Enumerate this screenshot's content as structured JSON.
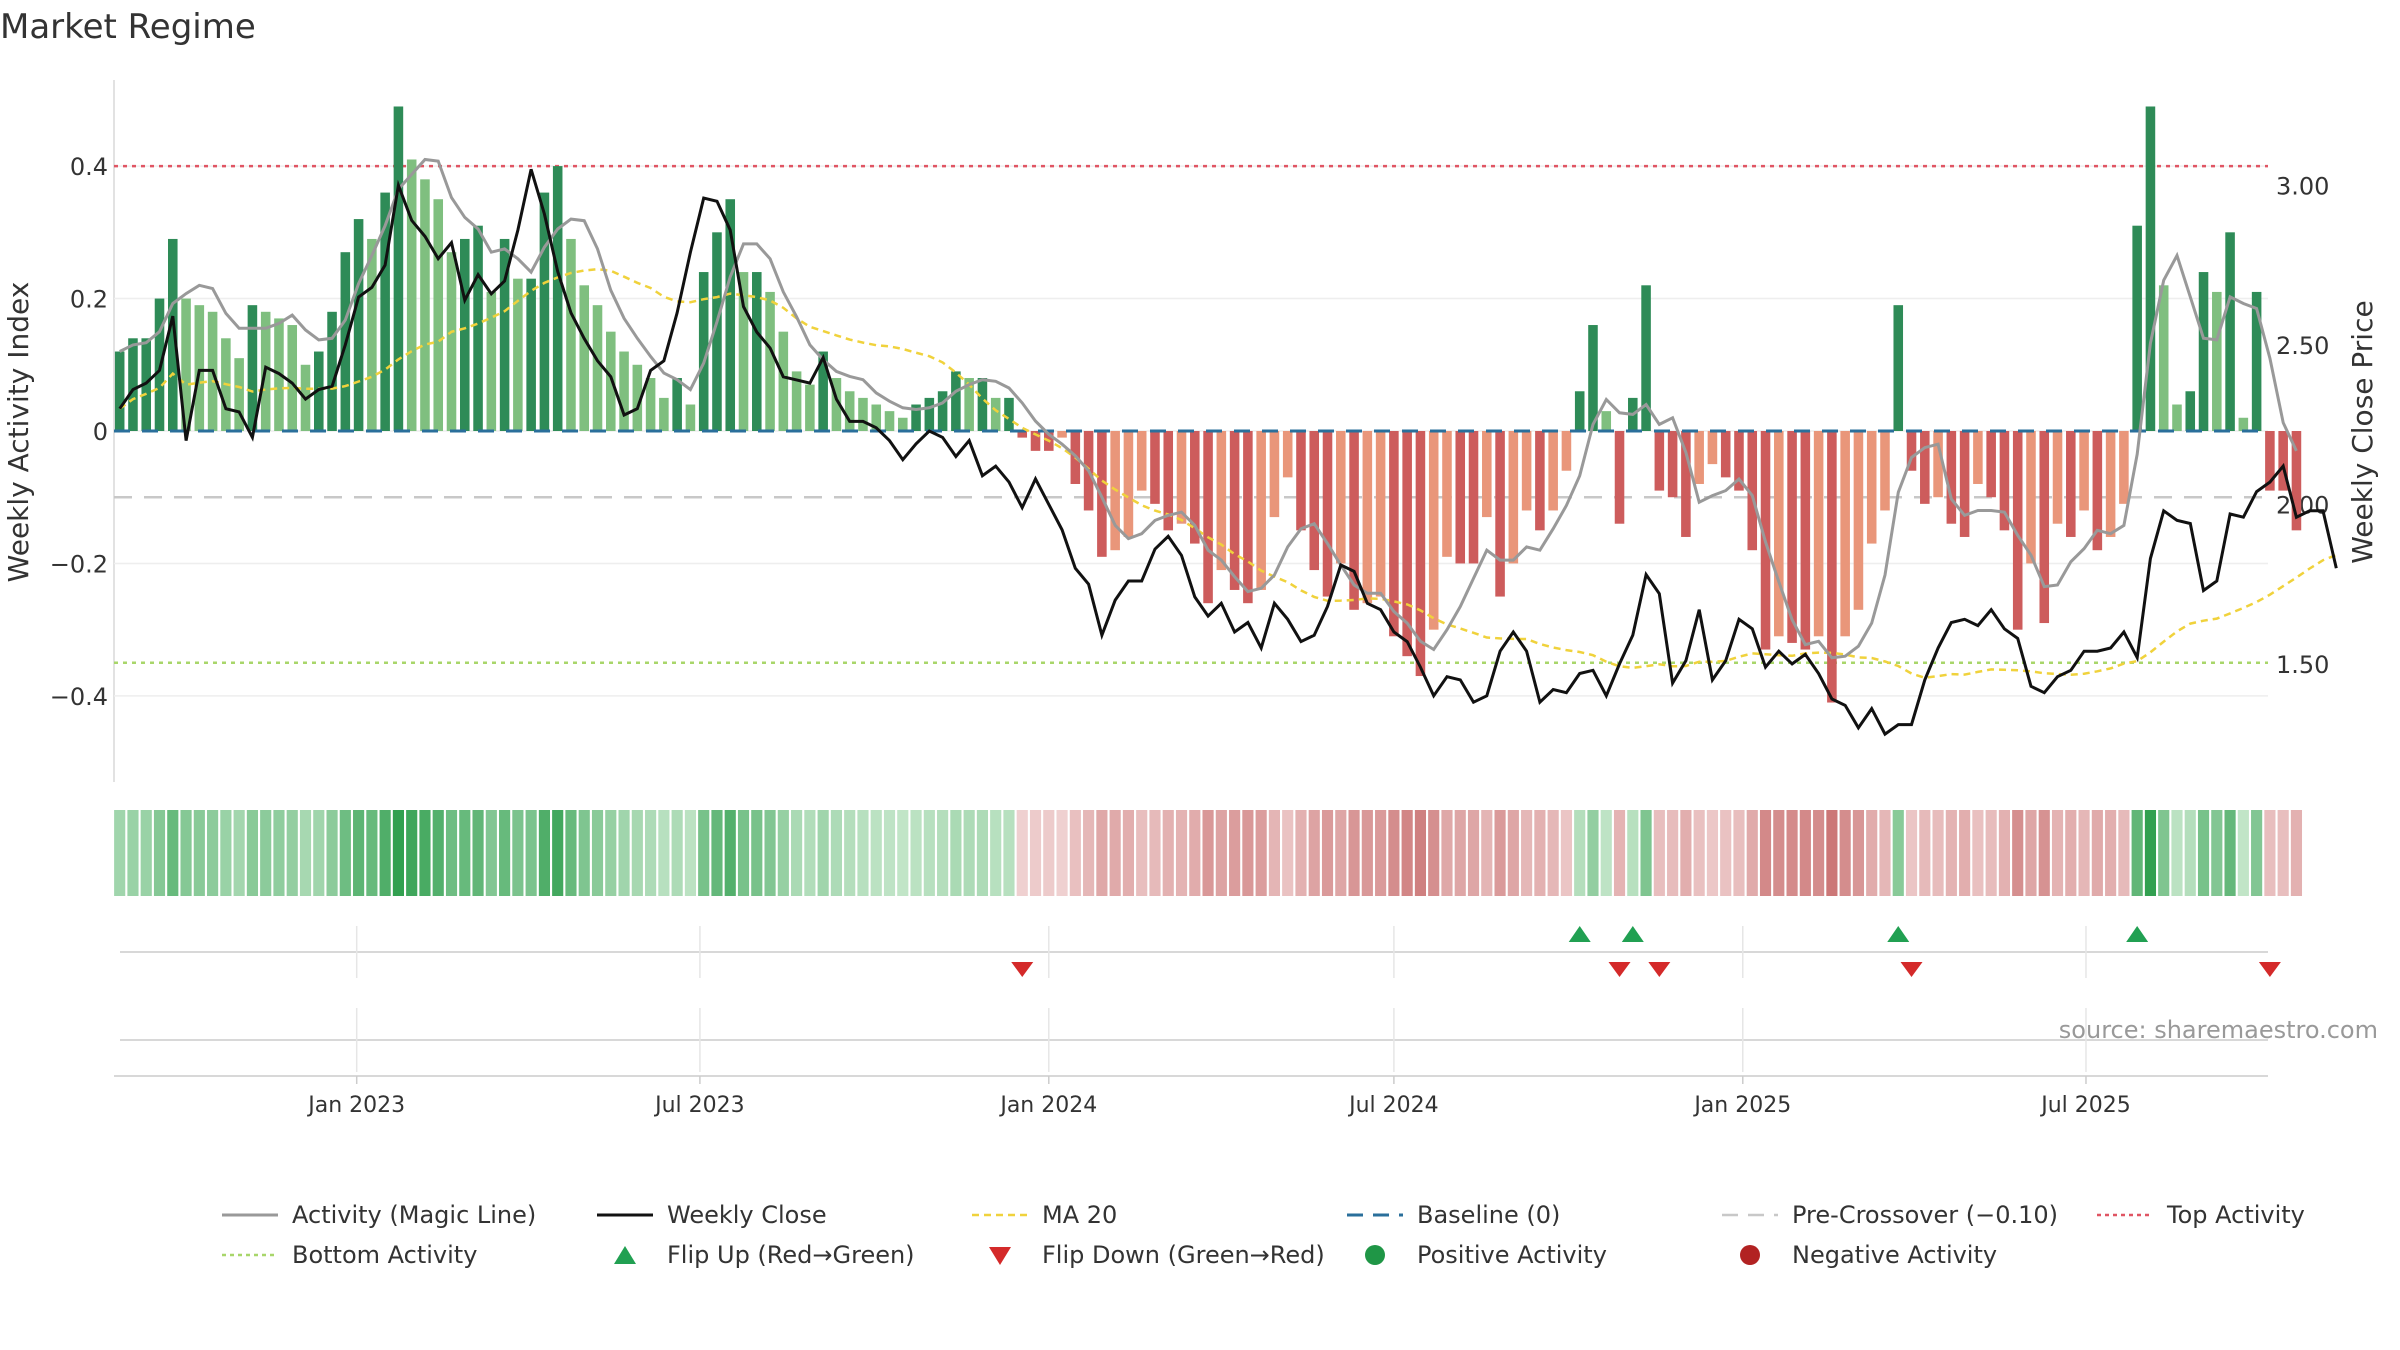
{
  "chart_data": {
    "type": "bar",
    "title": "Market Regime",
    "source": "source: sharemaestro.com",
    "y_left_label": "Weekly Activity Index",
    "y_right_label": "Weekly Close Price",
    "y_left_ticks": [
      "0.4",
      "0.2",
      "0",
      "−0.2",
      "−0.4"
    ],
    "y_left_tick_values": [
      0.4,
      0.2,
      0,
      -0.2,
      -0.4
    ],
    "y_right_ticks": [
      "3.00",
      "2.50",
      "2.00",
      "1.50"
    ],
    "y_right_tick_values": [
      3.0,
      2.5,
      2.0,
      1.5
    ],
    "x_ticks": [
      "Jan 2023",
      "Jul 2023",
      "Jan 2024",
      "Jul 2024",
      "Jan 2025",
      "Jul 2025"
    ],
    "x_tick_dates": [
      "2023-01-01",
      "2023-07-01",
      "2024-01-01",
      "2024-07-01",
      "2025-01-01",
      "2025-07-01"
    ],
    "date_range": [
      "2022-08-26",
      "2025-10-05"
    ],
    "y_left_range": [
      -0.53,
      0.53
    ],
    "y_right_range": [
      1.13,
      3.33
    ],
    "top_activity": 0.4,
    "bottom_activity": -0.35,
    "pre_crossover": -0.1,
    "baseline": 0,
    "activity_first_week": "2022-08-29",
    "activity_index": [
      0.12,
      0.14,
      0.14,
      0.2,
      0.29,
      0.2,
      0.19,
      0.18,
      0.14,
      0.11,
      0.19,
      0.18,
      0.17,
      0.16,
      0.1,
      0.12,
      0.18,
      0.27,
      0.32,
      0.29,
      0.36,
      0.49,
      0.41,
      0.38,
      0.35,
      0.27,
      0.29,
      0.31,
      0.21,
      0.29,
      0.23,
      0.23,
      0.36,
      0.4,
      0.29,
      0.22,
      0.19,
      0.15,
      0.12,
      0.1,
      0.08,
      0.05,
      0.08,
      0.04,
      0.24,
      0.3,
      0.35,
      0.24,
      0.24,
      0.21,
      0.15,
      0.09,
      0.07,
      0.12,
      0.08,
      0.06,
      0.05,
      0.04,
      0.03,
      0.02,
      0.04,
      0.05,
      0.06,
      0.09,
      0.08,
      0.08,
      0.05,
      0.05,
      -0.01,
      -0.03,
      -0.03,
      -0.01,
      -0.08,
      -0.12,
      -0.19,
      -0.18,
      -0.16,
      -0.09,
      -0.11,
      -0.15,
      -0.14,
      -0.17,
      -0.26,
      -0.21,
      -0.24,
      -0.26,
      -0.24,
      -0.13,
      -0.07,
      -0.15,
      -0.21,
      -0.25,
      -0.2,
      -0.27,
      -0.26,
      -0.25,
      -0.31,
      -0.34,
      -0.37,
      -0.3,
      -0.19,
      -0.2,
      -0.2,
      -0.13,
      -0.25,
      -0.2,
      -0.12,
      -0.15,
      -0.12,
      -0.06,
      0.06,
      0.16,
      0.03,
      -0.14,
      0.05,
      0.22,
      -0.09,
      -0.1,
      -0.16,
      -0.08,
      -0.05,
      -0.07,
      -0.09,
      -0.18,
      -0.33,
      -0.31,
      -0.32,
      -0.33,
      -0.31,
      -0.41,
      -0.31,
      -0.27,
      -0.17,
      -0.12,
      0.19,
      -0.06,
      -0.11,
      -0.1,
      -0.14,
      -0.16,
      -0.08,
      -0.1,
      -0.15,
      -0.3,
      -0.2,
      -0.29,
      -0.14,
      -0.16,
      -0.12,
      -0.18,
      -0.16,
      -0.11,
      0.31,
      0.49,
      0.22,
      0.04,
      0.06,
      0.24,
      0.21,
      0.3,
      0.02,
      0.21,
      -0.09,
      -0.09,
      -0.15
    ],
    "weekly_close": [
      2.3,
      2.36,
      2.38,
      2.42,
      2.59,
      2.2,
      2.42,
      2.42,
      2.3,
      2.29,
      2.21,
      2.43,
      2.41,
      2.38,
      2.33,
      2.36,
      2.37,
      2.5,
      2.65,
      2.68,
      2.75,
      3.0,
      2.89,
      2.84,
      2.77,
      2.82,
      2.64,
      2.72,
      2.66,
      2.7,
      2.86,
      3.05,
      2.91,
      2.73,
      2.6,
      2.52,
      2.45,
      2.4,
      2.28,
      2.3,
      2.42,
      2.45,
      2.6,
      2.79,
      2.96,
      2.95,
      2.86,
      2.62,
      2.54,
      2.49,
      2.4,
      2.39,
      2.38,
      2.46,
      2.33,
      2.26,
      2.26,
      2.24,
      2.2,
      2.14,
      2.19,
      2.23,
      2.21,
      2.15,
      2.2,
      2.09,
      2.12,
      2.07,
      1.99,
      2.08,
      2.0,
      1.92,
      1.8,
      1.75,
      1.59,
      1.7,
      1.76,
      1.76,
      1.86,
      1.9,
      1.84,
      1.71,
      1.65,
      1.69,
      1.6,
      1.63,
      1.55,
      1.69,
      1.64,
      1.57,
      1.59,
      1.68,
      1.81,
      1.79,
      1.69,
      1.67,
      1.6,
      1.57,
      1.49,
      1.4,
      1.46,
      1.45,
      1.38,
      1.4,
      1.54,
      1.6,
      1.54,
      1.38,
      1.42,
      1.41,
      1.47,
      1.48,
      1.4,
      1.5,
      1.59,
      1.78,
      1.72,
      1.44,
      1.51,
      1.67,
      1.45,
      1.51,
      1.64,
      1.61,
      1.49,
      1.54,
      1.5,
      1.53,
      1.47,
      1.39,
      1.37,
      1.3,
      1.36,
      1.28,
      1.31,
      1.31,
      1.45,
      1.55,
      1.63,
      1.64,
      1.62,
      1.67,
      1.61,
      1.58,
      1.43,
      1.41,
      1.46,
      1.48,
      1.54,
      1.54,
      1.55,
      1.6,
      1.52,
      1.83,
      1.98,
      1.95,
      1.94,
      1.73,
      1.76,
      1.97,
      1.96,
      2.04,
      2.07,
      2.12,
      1.96,
      1.98,
      1.98,
      1.8
    ]
  },
  "bands": {
    "positive_color": "#2e8b57",
    "positive_light_color": "#7fbf7f",
    "negative_color": "#cd5c5c",
    "negative_light_color": "#e9967a"
  },
  "legend": {
    "magic_line": "Activity (Magic Line)",
    "weekly_close": "Weekly Close",
    "ma20": "MA 20",
    "baseline": "Baseline (0)",
    "pre_crossover": "Pre-Crossover (−0.10)",
    "top_activity": "Top Activity",
    "bottom_activity": "Bottom Activity",
    "flip_up": "Flip Up (Red→Green)",
    "flip_down": "Flip Down (Green→Red)",
    "positive_activity": "Positive Activity",
    "negative_activity": "Negative Activity"
  },
  "colors": {
    "magic_line": "#999999",
    "weekly_close": "#111111",
    "ma20": "#f0d23c",
    "baseline": "#2a6f9b",
    "pre_crossover": "#c8c8c8",
    "top_activity": "#e05563",
    "bottom_activity": "#a8d66a",
    "flip_up": "#21a052",
    "flip_down": "#d42a2a",
    "positive": "#1f9646",
    "negative": "#b22222"
  }
}
